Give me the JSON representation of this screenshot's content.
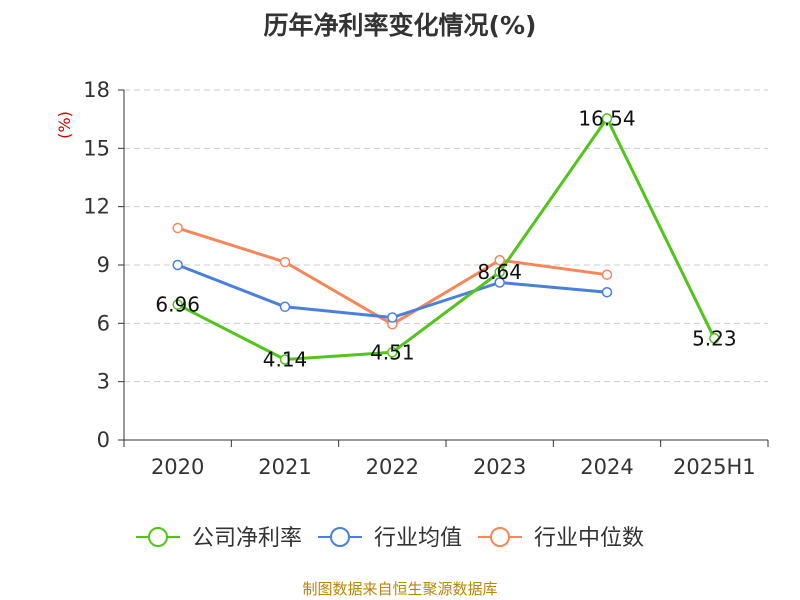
{
  "source_text": "制图数据来自恒生聚源数据库",
  "chart_data": {
    "type": "line",
    "title": "历年净利率变化情况(%)",
    "ylabel": "(%)",
    "xlabel": "",
    "categories": [
      "2020",
      "2021",
      "2022",
      "2023",
      "2024",
      "2025H1"
    ],
    "ylim": [
      0,
      18
    ],
    "yticks": [
      0,
      3,
      6,
      9,
      12,
      15,
      18
    ],
    "grid": true,
    "legend_position": "bottom",
    "series": [
      {
        "name": "公司净利率",
        "color": "#52c41a",
        "values": [
          6.96,
          4.14,
          4.51,
          8.64,
          16.54,
          5.23
        ],
        "data_labels": [
          "6.96",
          "4.14",
          "4.51",
          "8.64",
          "16.54",
          "5.23"
        ]
      },
      {
        "name": "行业均值",
        "color": "#4a7fdc",
        "values": [
          9.0,
          6.85,
          6.3,
          8.1,
          7.6,
          null
        ]
      },
      {
        "name": "行业中位数",
        "color": "#f5875a",
        "values": [
          10.9,
          9.15,
          5.95,
          9.25,
          8.5,
          null
        ]
      }
    ]
  }
}
